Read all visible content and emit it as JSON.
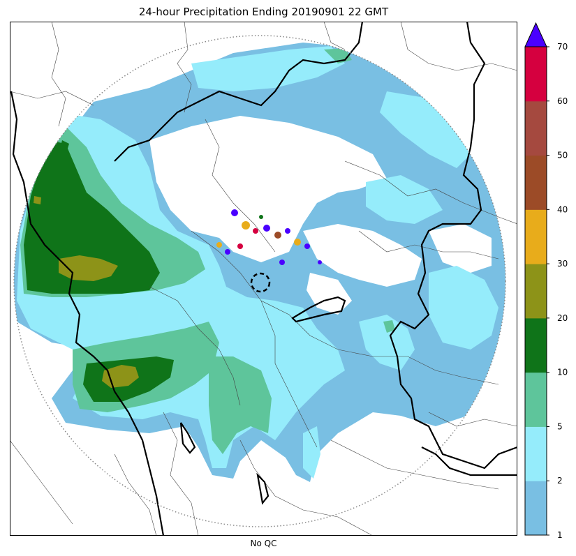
{
  "chart_data": {
    "type": "heatmap",
    "title": "24-hour Precipitation Ending 20190901 22 GMT",
    "subtitle": "No QC",
    "colorbar": {
      "ticks": [
        "1",
        "2",
        "5",
        "10",
        "20",
        "30",
        "40",
        "50",
        "60",
        "70"
      ],
      "bins": [
        {
          "from": 1,
          "to": 2,
          "color": "#79bfe3"
        },
        {
          "from": 2,
          "to": 5,
          "color": "#95ecfb"
        },
        {
          "from": 5,
          "to": 10,
          "color": "#5ec59b"
        },
        {
          "from": 10,
          "to": 20,
          "color": "#0f7419"
        },
        {
          "from": 20,
          "to": 30,
          "color": "#8d9318"
        },
        {
          "from": 30,
          "to": 40,
          "color": "#e8ac1b"
        },
        {
          "from": 40,
          "to": 50,
          "color": "#9c4b27"
        },
        {
          "from": 50,
          "to": 60,
          "color": "#a5493f"
        },
        {
          "from": 60,
          "to": 70,
          "color": "#d5003f"
        }
      ],
      "extend_max_color": "#4a00ff"
    },
    "range_ring": "dotted",
    "radar_site_marker": "dashed-circle"
  }
}
